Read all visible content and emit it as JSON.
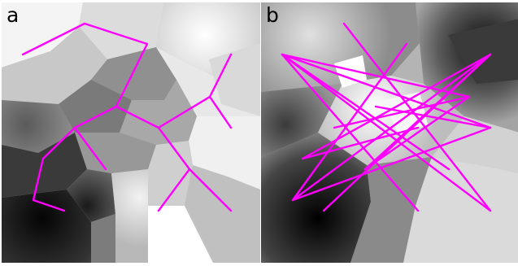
{
  "panels": [
    {
      "id": "a",
      "label": "a"
    },
    {
      "id": "b",
      "label": "b"
    }
  ],
  "colors": {
    "graph_edge": "#ff00ff",
    "background_min": "#000000",
    "background_max": "#ffffff"
  }
}
